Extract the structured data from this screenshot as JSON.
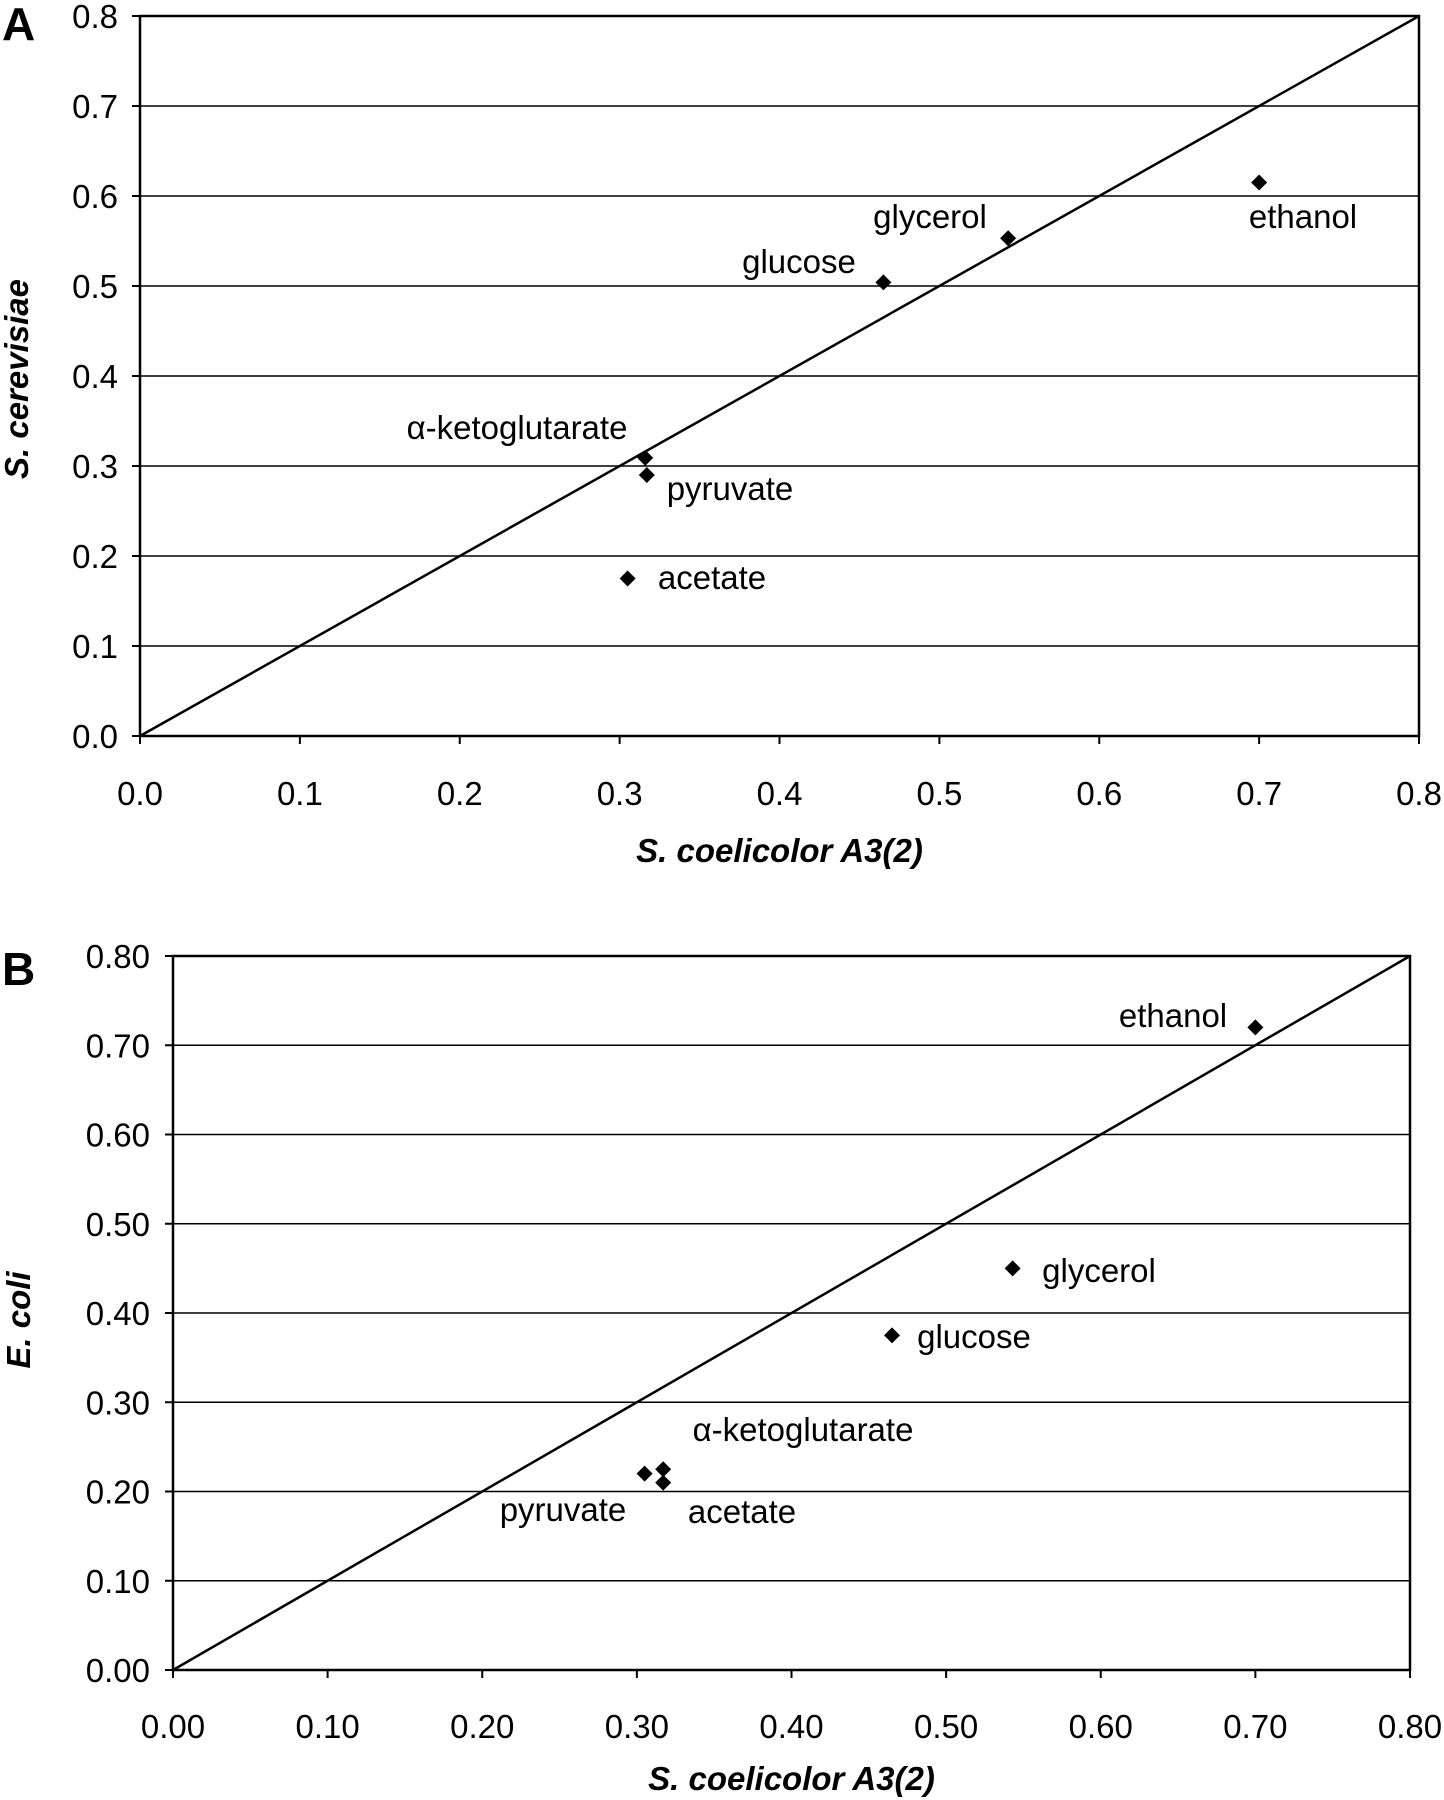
{
  "chart_data": [
    {
      "type": "scatter",
      "panel_label": "A",
      "xlabel": "S. coelicolor A3(2)",
      "ylabel": "S. cerevisiae",
      "xlim": [
        0,
        0.8
      ],
      "ylim": [
        0,
        0.8
      ],
      "xticks": [
        "0.0",
        "0.1",
        "0.2",
        "0.3",
        "0.4",
        "0.5",
        "0.6",
        "0.7",
        "0.8"
      ],
      "yticks": [
        "0.0",
        "0.1",
        "0.2",
        "0.3",
        "0.4",
        "0.5",
        "0.6",
        "0.7",
        "0.8"
      ],
      "grid": "horizontal",
      "reference_line": "y = x",
      "marker": "diamond",
      "points": [
        {
          "label": "ethanol",
          "x": 0.7,
          "y": 0.615
        },
        {
          "label": "glycerol",
          "x": 0.543,
          "y": 0.553
        },
        {
          "label": "glucose",
          "x": 0.465,
          "y": 0.504
        },
        {
          "label": "α-ketoglutarate",
          "x": 0.316,
          "y": 0.309
        },
        {
          "label": "pyruvate",
          "x": 0.317,
          "y": 0.29
        },
        {
          "label": "acetate",
          "x": 0.305,
          "y": 0.175
        }
      ]
    },
    {
      "type": "scatter",
      "panel_label": "B",
      "xlabel": "S. coelicolor A3(2)",
      "ylabel": "E. coli",
      "xlim": [
        0,
        0.8
      ],
      "ylim": [
        0,
        0.8
      ],
      "xticks": [
        "0.00",
        "0.10",
        "0.20",
        "0.30",
        "0.40",
        "0.50",
        "0.60",
        "0.70",
        "0.80"
      ],
      "yticks": [
        "0.00",
        "0.10",
        "0.20",
        "0.30",
        "0.40",
        "0.50",
        "0.60",
        "0.70",
        "0.80"
      ],
      "grid": "horizontal",
      "reference_line": "y = x",
      "marker": "diamond",
      "points": [
        {
          "label": "ethanol",
          "x": 0.7,
          "y": 0.72
        },
        {
          "label": "glycerol",
          "x": 0.543,
          "y": 0.45
        },
        {
          "label": "glucose",
          "x": 0.465,
          "y": 0.375
        },
        {
          "label": "α-ketoglutarate",
          "x": 0.317,
          "y": 0.225
        },
        {
          "label": "acetate",
          "x": 0.317,
          "y": 0.21
        },
        {
          "label": "pyruvate",
          "x": 0.305,
          "y": 0.22
        }
      ]
    }
  ]
}
